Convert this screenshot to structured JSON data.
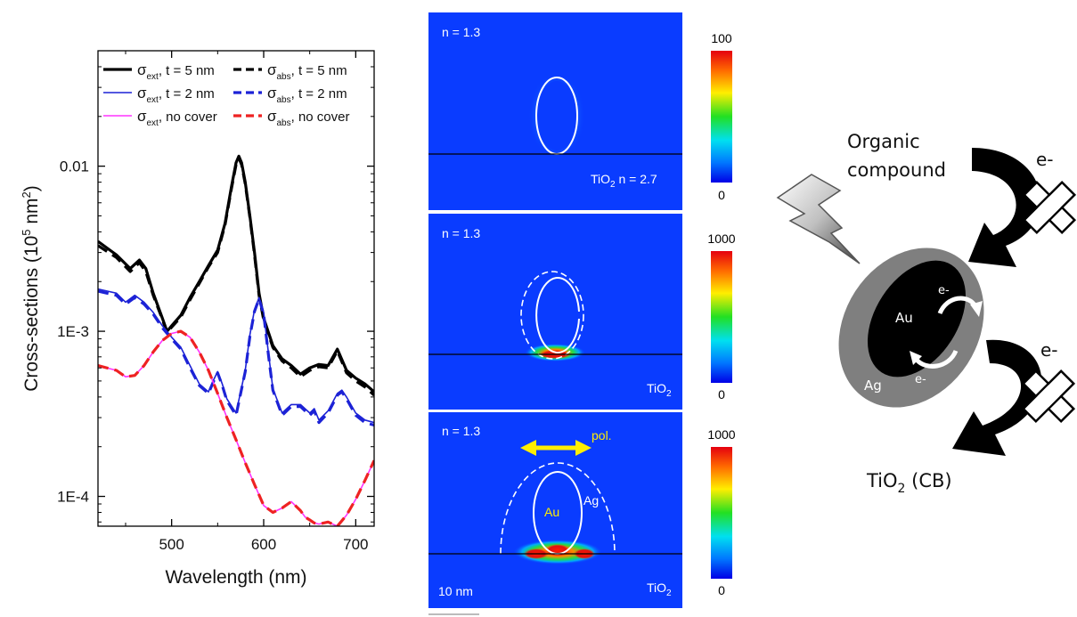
{
  "chart_data": {
    "type": "line",
    "xlabel": "Wavelength (nm)",
    "ylabel": {
      "pre": "Cross-sections (10",
      "exp": "5",
      "mid": " nm",
      "exp2": "2",
      "post": ")"
    },
    "xlim": [
      420,
      720
    ],
    "ylim": [
      6.6e-05,
      0.05
    ],
    "yscale": "log",
    "x_ticks": [
      "500",
      "600",
      "700"
    ],
    "x_tick_values": [
      500,
      600,
      700
    ],
    "y_ticks": [
      "0.01",
      "1E-3",
      "1E-4"
    ],
    "y_tick_values": [
      0.01,
      0.001,
      0.0001
    ],
    "legend_position": "top",
    "series": [
      {
        "key": "ext5",
        "name": {
          "sym": "σ",
          "sub": "ext",
          "rest": ", t = 5 nm"
        },
        "color": "#000000",
        "dash": false,
        "width": 3.2,
        "x": [
          420,
          440,
          455,
          465,
          472,
          480,
          490,
          495,
          500,
          510,
          520,
          530,
          540,
          550,
          558,
          565,
          570,
          573,
          576,
          580,
          585,
          590,
          595,
          600,
          610,
          620,
          630,
          640,
          650,
          660,
          670,
          680,
          690,
          700,
          710,
          720
        ],
        "y": [
          0.0035,
          0.0029,
          0.0024,
          0.0027,
          0.0024,
          0.0017,
          0.0012,
          0.001,
          0.00108,
          0.00125,
          0.0016,
          0.002,
          0.0025,
          0.0031,
          0.0045,
          0.0075,
          0.0105,
          0.0115,
          0.0105,
          0.008,
          0.005,
          0.003,
          0.0017,
          0.0012,
          0.00082,
          0.00068,
          0.00062,
          0.00055,
          0.0006,
          0.00063,
          0.00062,
          0.00078,
          0.00058,
          0.00052,
          0.00048,
          0.00043
        ]
      },
      {
        "key": "abs5",
        "name": {
          "sym": "σ",
          "sub": "abs",
          "rest": ", t = 5 nm"
        },
        "color": "#000000",
        "dash": true,
        "width": 3.2,
        "x": [
          420,
          440,
          455,
          465,
          472,
          480,
          490,
          495,
          500,
          510,
          520,
          530,
          540,
          550,
          558,
          565,
          570,
          573,
          576,
          580,
          585,
          590,
          595,
          600,
          610,
          620,
          630,
          640,
          650,
          660,
          670,
          680,
          690,
          700,
          710,
          720
        ],
        "y": [
          0.0033,
          0.0028,
          0.0023,
          0.0026,
          0.0023,
          0.00165,
          0.00118,
          0.00098,
          0.00106,
          0.00122,
          0.00155,
          0.00195,
          0.00245,
          0.003,
          0.0044,
          0.0073,
          0.0102,
          0.0112,
          0.0102,
          0.0078,
          0.0049,
          0.0029,
          0.00165,
          0.00117,
          0.0008,
          0.00066,
          0.0006,
          0.00053,
          0.00058,
          0.00061,
          0.0006,
          0.00076,
          0.00056,
          0.0005,
          0.00046,
          0.00041
        ]
      },
      {
        "key": "ext2",
        "name": {
          "sym": "σ",
          "sub": "ext",
          "rest": ", t = 2 nm"
        },
        "color": "#1c22d6",
        "dash": false,
        "width": 1.6,
        "x": [
          420,
          440,
          450,
          460,
          470,
          480,
          490,
          500,
          510,
          520,
          530,
          540,
          545,
          550,
          555,
          560,
          570,
          580,
          585,
          590,
          595,
          600,
          605,
          610,
          620,
          630,
          640,
          650,
          655,
          660,
          670,
          680,
          685,
          690,
          700,
          710,
          720
        ],
        "y": [
          0.0018,
          0.0017,
          0.0015,
          0.00165,
          0.0015,
          0.0013,
          0.00108,
          0.00092,
          0.0008,
          0.00062,
          0.00048,
          0.00043,
          0.0005,
          0.00057,
          0.00048,
          0.00039,
          0.00032,
          0.00058,
          0.00095,
          0.00135,
          0.0016,
          0.0013,
          0.00075,
          0.00045,
          0.00032,
          0.00036,
          0.00036,
          0.00032,
          0.00034,
          0.00029,
          0.00033,
          0.00042,
          0.00044,
          0.0004,
          0.00032,
          0.00029,
          0.00028
        ]
      },
      {
        "key": "abs2",
        "name": {
          "sym": "σ",
          "sub": "abs",
          "rest": ", t = 2 nm"
        },
        "color": "#1c22d6",
        "dash": true,
        "width": 3.2,
        "x": [
          420,
          440,
          450,
          460,
          470,
          480,
          490,
          500,
          510,
          520,
          530,
          540,
          545,
          550,
          555,
          560,
          570,
          580,
          585,
          590,
          595,
          600,
          605,
          610,
          620,
          630,
          640,
          650,
          655,
          660,
          670,
          680,
          685,
          690,
          700,
          710,
          720
        ],
        "y": [
          0.00175,
          0.00165,
          0.00146,
          0.0016,
          0.00146,
          0.00127,
          0.00105,
          0.0009,
          0.00078,
          0.0006,
          0.00047,
          0.00042,
          0.00049,
          0.00056,
          0.00047,
          0.00038,
          0.00031,
          0.00057,
          0.00093,
          0.00132,
          0.00157,
          0.00127,
          0.00073,
          0.00044,
          0.00031,
          0.00035,
          0.00035,
          0.00031,
          0.00033,
          0.00028,
          0.00032,
          0.00041,
          0.00043,
          0.00039,
          0.00031,
          0.00028,
          0.00027
        ]
      },
      {
        "key": "ext0",
        "name": {
          "sym": "σ",
          "sub": "ext",
          "rest": ", no cover"
        },
        "color": "#ff33ff",
        "dash": false,
        "width": 1.6,
        "x": [
          420,
          440,
          450,
          460,
          470,
          480,
          490,
          500,
          510,
          520,
          530,
          540,
          550,
          560,
          570,
          580,
          590,
          600,
          610,
          620,
          630,
          640,
          645,
          650,
          655,
          660,
          670,
          680,
          690,
          700,
          710,
          720
        ],
        "y": [
          0.00062,
          0.00058,
          0.00053,
          0.00054,
          0.00062,
          0.00075,
          0.00088,
          0.00097,
          0.001,
          0.00092,
          0.00075,
          0.00058,
          0.00042,
          0.0003,
          0.00022,
          0.00016,
          0.000118,
          8.8e-05,
          8e-05,
          8.5e-05,
          9.3e-05,
          8.2e-05,
          7.5e-05,
          7.2e-05,
          6.9e-05,
          6.8e-05,
          7e-05,
          6.6e-05,
          7.7e-05,
          9.6e-05,
          0.000125,
          0.000165
        ]
      },
      {
        "key": "abs0",
        "name": {
          "sym": "σ",
          "sub": "abs",
          "rest": ", no cover"
        },
        "color": "#ee2222",
        "dash": true,
        "width": 3.2,
        "x": [
          420,
          440,
          450,
          460,
          470,
          480,
          490,
          500,
          510,
          520,
          530,
          540,
          550,
          560,
          570,
          580,
          590,
          600,
          610,
          620,
          630,
          640,
          645,
          650,
          655,
          660,
          670,
          680,
          690,
          700,
          710,
          720
        ],
        "y": [
          0.00062,
          0.00058,
          0.00053,
          0.00054,
          0.00062,
          0.00075,
          0.00088,
          0.00097,
          0.001,
          0.00092,
          0.00075,
          0.00058,
          0.00042,
          0.0003,
          0.00022,
          0.00016,
          0.000118,
          8.8e-05,
          8e-05,
          8.5e-05,
          9.3e-05,
          8.2e-05,
          7.5e-05,
          7.2e-05,
          6.9e-05,
          6.8e-05,
          7e-05,
          6.6e-05,
          7.7e-05,
          9.6e-05,
          0.000125,
          0.000165
        ]
      }
    ]
  },
  "field_maps": [
    {
      "n_label": "n = 1.3",
      "substrate": {
        "base": "TiO",
        "sub": "2",
        "extra": "   n = 2.7"
      },
      "scale_max": "100",
      "scale_min": "0",
      "has_shell": false
    },
    {
      "n_label": "n = 1.3",
      "substrate": {
        "base": "TiO",
        "sub": "2",
        "extra": ""
      },
      "scale_max": "1000",
      "scale_min": "0",
      "has_shell": true
    },
    {
      "n_label": "n = 1.3",
      "substrate": {
        "base": "TiO",
        "sub": "2",
        "extra": ""
      },
      "scale_max": "1000",
      "scale_min": "0",
      "has_shell": true,
      "pol_label": "pol.",
      "core_label": "Au",
      "shell_label": "Ag",
      "scale_bar": "10 nm"
    }
  ],
  "schematic": {
    "organic": [
      "Organic",
      "compound"
    ],
    "electron": "e-",
    "core": "Au",
    "shell": "Ag",
    "tio2": {
      "base": "TiO",
      "sub": "2",
      "rest": " (CB)"
    },
    "colors": {
      "core": "#000000",
      "shell": "#7f7f7f",
      "arrow": "#000000"
    }
  }
}
